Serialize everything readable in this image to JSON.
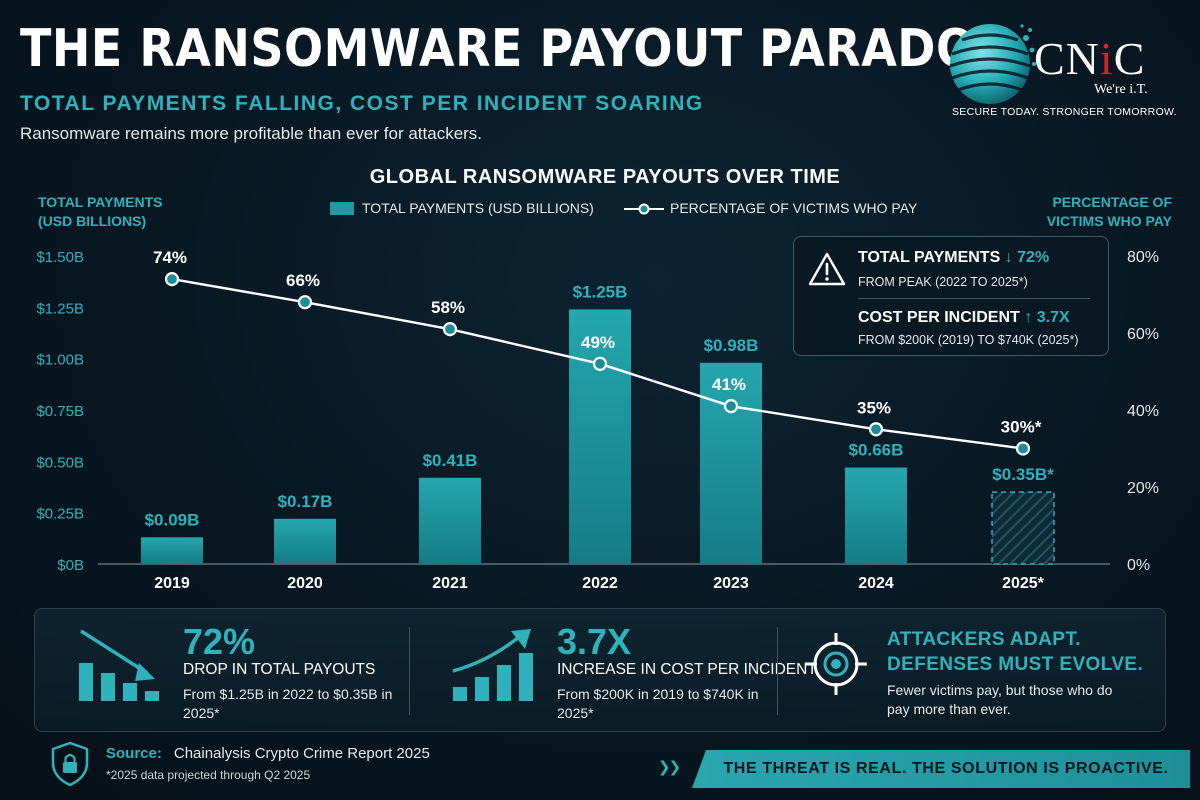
{
  "header": {
    "title": "THE RANSOMWARE PAYOUT PARADOX",
    "subtitle": "TOTAL PAYMENTS FALLING, COST PER INCIDENT SOARING",
    "tagline": "Ransomware remains more profitable than ever for attackers."
  },
  "logo": {
    "name_prefix": "CN",
    "name_accent": "i",
    "name_suffix": "C",
    "sub": "We're i.T.",
    "tagline": "SECURE TODAY. STRONGER TOMORROW."
  },
  "chart_data": {
    "type": "bar",
    "title": "GLOBAL RANSOMWARE PAYOUTS OVER TIME",
    "ylabel": "TOTAL PAYMENTS (USD BILLIONS)",
    "ylabel_right": "PERCENTAGE OF VICTIMS WHO PAY",
    "categories": [
      "2019",
      "2020",
      "2021",
      "2022",
      "2023",
      "2024",
      "2025*"
    ],
    "ylim": [
      0,
      1.5
    ],
    "ylim_right": [
      0,
      80
    ],
    "y_ticks": [
      "$0B",
      "$0.25B",
      "$0.50B",
      "$0.75B",
      "$1.00B",
      "$1.25B",
      "$1.50B"
    ],
    "y_tick_values": [
      0,
      0.25,
      0.5,
      0.75,
      1.0,
      1.25,
      1.5
    ],
    "y_right_ticks": [
      "0%",
      "20%",
      "40%",
      "60%",
      "80%"
    ],
    "y_right_tick_values": [
      0,
      20,
      40,
      60,
      80
    ],
    "series": [
      {
        "name": "TOTAL PAYMENTS (USD BILLIONS)",
        "type": "bar",
        "values": [
          0.09,
          0.17,
          0.41,
          1.25,
          0.98,
          0.66,
          0.35
        ],
        "display_values": [
          0.13,
          0.22,
          0.42,
          1.24,
          0.98,
          0.47,
          0.35
        ],
        "labels": [
          "$0.09B",
          "$0.17B",
          "$0.41B",
          "$1.25B",
          "$0.98B",
          "$0.66B",
          "$0.35B*"
        ],
        "projected": [
          false,
          false,
          false,
          false,
          false,
          false,
          true
        ]
      },
      {
        "name": "PERCENTAGE OF VICTIMS WHO PAY",
        "type": "line",
        "axis": "right",
        "values": [
          74,
          66,
          58,
          49,
          41,
          35,
          30
        ],
        "display_values": [
          74,
          68,
          61,
          52,
          41,
          35,
          30
        ],
        "labels": [
          "74%",
          "66%",
          "58%",
          "49%",
          "41%",
          "35%",
          "30%*"
        ]
      }
    ],
    "colors": {
      "bar": "#1f9aa3",
      "bar_label": "#2fb2bb",
      "line": "#ffffff",
      "marker_fill": "#1a8e97",
      "axis_text": "#2fb2bb",
      "grid": "#1d3340"
    },
    "legend_position": "top-center"
  },
  "callout": {
    "row1_title": "TOTAL PAYMENTS",
    "row1_value": "↓ 72%",
    "row1_sub": "FROM PEAK (2022 TO 2025*)",
    "row2_title": "COST PER INCIDENT",
    "row2_value": "↑ 3.7X",
    "row2_sub": "FROM $200K (2019) TO $740K (2025*)",
    "icon": "warning-triangle-icon"
  },
  "stats": [
    {
      "big": "72%",
      "label": "DROP IN TOTAL PAYOUTS",
      "desc": "From $1.25B in 2022 to $0.35B in 2025*",
      "icon": "falling-bars-icon"
    },
    {
      "big": "3.7X",
      "label": "INCREASE IN COST PER INCIDENT",
      "desc": "From $200K in 2019 to $740K in 2025*",
      "icon": "rising-bars-icon"
    },
    {
      "head": "ATTACKERS ADAPT. DEFENSES MUST EVOLVE.",
      "desc": "Fewer victims pay, but those who do pay more than ever.",
      "icon": "target-icon"
    }
  ],
  "footer": {
    "source_label": "Source:",
    "source_text": "Chainalysis Crypto Crime Report 2025",
    "footnote": "*2025 data projected through Q2 2025",
    "banner": "THE THREAT IS REAL. THE SOLUTION IS PROACTIVE."
  }
}
